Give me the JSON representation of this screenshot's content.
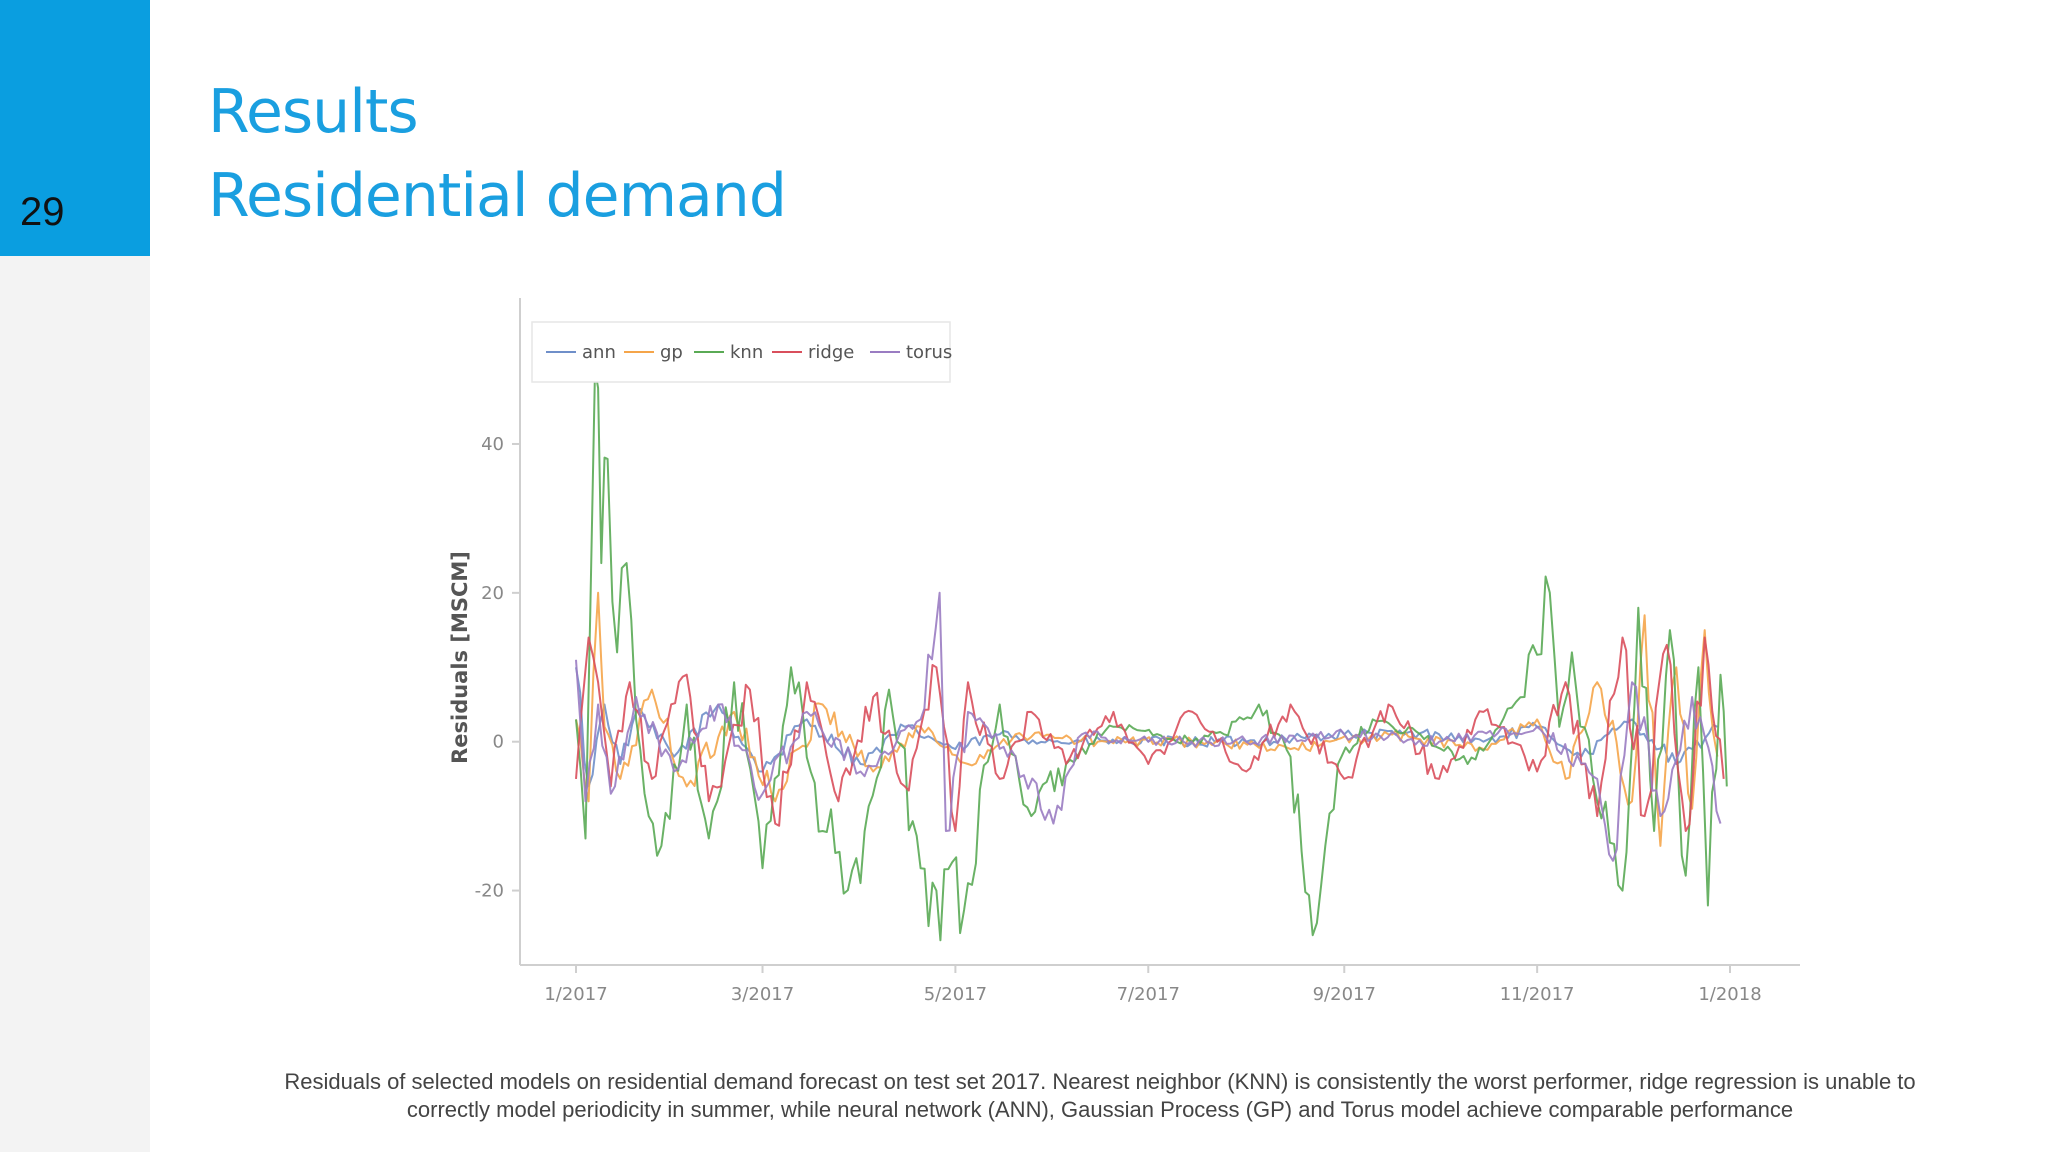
{
  "slide": {
    "number": "29",
    "title_line1": "Results",
    "title_line2": "Residential demand",
    "caption": "Residuals of selected models on residential demand forecast on test set 2017. Nearest neighbor (KNN) is consistently the worst performer, ridge regression is unable to correctly model periodicity in summer, while neural network (ANN), Gaussian Process (GP) and Torus model achieve comparable performance"
  },
  "chart_data": {
    "type": "line",
    "title": "",
    "xlabel": "",
    "ylabel": "Residuals [MSCM]",
    "ylim": [
      -30,
      58
    ],
    "yticks": [
      40,
      20,
      0,
      -20
    ],
    "ytick_labels": [
      "40",
      "20",
      "0",
      "-20"
    ],
    "x_range": [
      "2017-01-01",
      "2018-01-01"
    ],
    "xticks": [
      "2017-01-01",
      "2017-03-01",
      "2017-05-01",
      "2017-07-01",
      "2017-09-01",
      "2017-11-01",
      "2018-01-01"
    ],
    "xtick_labels": [
      "1/2017",
      "3/2017",
      "5/2017",
      "7/2017",
      "9/2017",
      "11/2017",
      "1/2018"
    ],
    "grid": false,
    "legend": "top-left",
    "legend_layout": "horizontal",
    "series": [
      {
        "name": "ann",
        "color": "#6f8fc9",
        "points": [
          [
            "2017-01-01",
            10
          ],
          [
            "2017-01-05",
            -6
          ],
          [
            "2017-01-10",
            5
          ],
          [
            "2017-01-15",
            -3
          ],
          [
            "2017-01-20",
            4
          ],
          [
            "2017-02-01",
            -2
          ],
          [
            "2017-02-15",
            5
          ],
          [
            "2017-03-01",
            -4
          ],
          [
            "2017-03-15",
            3
          ],
          [
            "2017-04-01",
            -3
          ],
          [
            "2017-04-15",
            2
          ],
          [
            "2017-05-01",
            -1
          ],
          [
            "2017-05-15",
            1
          ],
          [
            "2017-06-01",
            0
          ],
          [
            "2017-07-01",
            0
          ],
          [
            "2017-08-01",
            0
          ],
          [
            "2017-09-01",
            1
          ],
          [
            "2017-10-01",
            1
          ],
          [
            "2017-10-15",
            0
          ],
          [
            "2017-11-01",
            2
          ],
          [
            "2017-11-15",
            -2
          ],
          [
            "2017-12-01",
            3
          ],
          [
            "2017-12-15",
            -3
          ],
          [
            "2017-12-28",
            2
          ]
        ]
      },
      {
        "name": "gp",
        "color": "#f5a54a",
        "points": [
          [
            "2017-01-01",
            3
          ],
          [
            "2017-01-05",
            -8
          ],
          [
            "2017-01-08",
            20
          ],
          [
            "2017-01-10",
            2
          ],
          [
            "2017-01-15",
            -5
          ],
          [
            "2017-01-25",
            7
          ],
          [
            "2017-02-05",
            -6
          ],
          [
            "2017-02-20",
            4
          ],
          [
            "2017-03-05",
            -8
          ],
          [
            "2017-03-20",
            5
          ],
          [
            "2017-04-05",
            -4
          ],
          [
            "2017-04-20",
            2
          ],
          [
            "2017-05-05",
            -3
          ],
          [
            "2017-05-20",
            1
          ],
          [
            "2017-06-15",
            0
          ],
          [
            "2017-07-15",
            0
          ],
          [
            "2017-08-15",
            -1
          ],
          [
            "2017-09-15",
            1
          ],
          [
            "2017-10-15",
            -1
          ],
          [
            "2017-11-01",
            3
          ],
          [
            "2017-11-10",
            -5
          ],
          [
            "2017-11-20",
            8
          ],
          [
            "2017-12-01",
            -8
          ],
          [
            "2017-12-05",
            17
          ],
          [
            "2017-12-10",
            -14
          ],
          [
            "2017-12-15",
            10
          ],
          [
            "2017-12-20",
            -9
          ],
          [
            "2017-12-24",
            15
          ],
          [
            "2017-12-28",
            -2
          ]
        ]
      },
      {
        "name": "knn",
        "color": "#5aaa55",
        "points": [
          [
            "2017-01-01",
            3
          ],
          [
            "2017-01-04",
            -13
          ],
          [
            "2017-01-07",
            50
          ],
          [
            "2017-01-09",
            24
          ],
          [
            "2017-01-11",
            38
          ],
          [
            "2017-01-14",
            12
          ],
          [
            "2017-01-17",
            24
          ],
          [
            "2017-01-20",
            3
          ],
          [
            "2017-01-24",
            -10
          ],
          [
            "2017-01-28",
            -14
          ],
          [
            "2017-02-05",
            5
          ],
          [
            "2017-02-12",
            -13
          ],
          [
            "2017-02-20",
            8
          ],
          [
            "2017-03-01",
            -17
          ],
          [
            "2017-03-10",
            10
          ],
          [
            "2017-03-20",
            -12
          ],
          [
            "2017-04-01",
            -19
          ],
          [
            "2017-04-10",
            7
          ],
          [
            "2017-04-20",
            -17
          ],
          [
            "2017-04-25",
            -20
          ],
          [
            "2017-05-05",
            -19
          ],
          [
            "2017-05-15",
            5
          ],
          [
            "2017-05-25",
            -10
          ],
          [
            "2017-06-05",
            -3
          ],
          [
            "2017-06-20",
            2
          ],
          [
            "2017-07-10",
            0
          ],
          [
            "2017-07-25",
            1
          ],
          [
            "2017-08-05",
            5
          ],
          [
            "2017-08-15",
            -2
          ],
          [
            "2017-08-22",
            -26
          ],
          [
            "2017-08-26",
            -14
          ],
          [
            "2017-08-30",
            -3
          ],
          [
            "2017-09-10",
            3
          ],
          [
            "2017-09-25",
            1
          ],
          [
            "2017-10-10",
            -3
          ],
          [
            "2017-10-20",
            2
          ],
          [
            "2017-10-28",
            6
          ],
          [
            "2017-11-05",
            20
          ],
          [
            "2017-11-08",
            2
          ],
          [
            "2017-11-12",
            12
          ],
          [
            "2017-11-20",
            -8
          ],
          [
            "2017-11-28",
            -20
          ],
          [
            "2017-12-03",
            18
          ],
          [
            "2017-12-08",
            -12
          ],
          [
            "2017-12-13",
            15
          ],
          [
            "2017-12-18",
            -18
          ],
          [
            "2017-12-22",
            10
          ],
          [
            "2017-12-25",
            -22
          ],
          [
            "2017-12-29",
            9
          ],
          [
            "2017-12-31",
            -6
          ]
        ]
      },
      {
        "name": "ridge",
        "color": "#d94f5c",
        "points": [
          [
            "2017-01-01",
            -5
          ],
          [
            "2017-01-05",
            14
          ],
          [
            "2017-01-08",
            8
          ],
          [
            "2017-01-12",
            -6
          ],
          [
            "2017-01-18",
            8
          ],
          [
            "2017-01-25",
            -5
          ],
          [
            "2017-02-05",
            9
          ],
          [
            "2017-02-12",
            -8
          ],
          [
            "2017-02-25",
            7
          ],
          [
            "2017-03-05",
            -11
          ],
          [
            "2017-03-15",
            8
          ],
          [
            "2017-03-25",
            -8
          ],
          [
            "2017-04-05",
            6
          ],
          [
            "2017-04-15",
            -6
          ],
          [
            "2017-04-25",
            10
          ],
          [
            "2017-05-01",
            -12
          ],
          [
            "2017-05-05",
            8
          ],
          [
            "2017-05-15",
            -5
          ],
          [
            "2017-05-25",
            4
          ],
          [
            "2017-06-05",
            -3
          ],
          [
            "2017-06-20",
            4
          ],
          [
            "2017-07-01",
            -3
          ],
          [
            "2017-07-15",
            4
          ],
          [
            "2017-08-01",
            -4
          ],
          [
            "2017-08-15",
            5
          ],
          [
            "2017-09-01",
            -5
          ],
          [
            "2017-09-15",
            5
          ],
          [
            "2017-10-01",
            -5
          ],
          [
            "2017-10-15",
            4
          ],
          [
            "2017-11-01",
            -4
          ],
          [
            "2017-11-10",
            8
          ],
          [
            "2017-11-20",
            -10
          ],
          [
            "2017-11-28",
            14
          ],
          [
            "2017-12-05",
            -10
          ],
          [
            "2017-12-12",
            13
          ],
          [
            "2017-12-18",
            -12
          ],
          [
            "2017-12-24",
            14
          ],
          [
            "2017-12-30",
            -5
          ]
        ]
      },
      {
        "name": "torus",
        "color": "#9a7cc2",
        "points": [
          [
            "2017-01-01",
            11
          ],
          [
            "2017-01-04",
            -8
          ],
          [
            "2017-01-08",
            5
          ],
          [
            "2017-01-12",
            -7
          ],
          [
            "2017-01-20",
            6
          ],
          [
            "2017-02-01",
            -4
          ],
          [
            "2017-02-15",
            5
          ],
          [
            "2017-03-01",
            -7
          ],
          [
            "2017-03-15",
            4
          ],
          [
            "2017-04-01",
            -4
          ],
          [
            "2017-04-20",
            3
          ],
          [
            "2017-04-26",
            20
          ],
          [
            "2017-04-28",
            -12
          ],
          [
            "2017-05-05",
            4
          ],
          [
            "2017-05-20",
            -2
          ],
          [
            "2017-06-01",
            -11
          ],
          [
            "2017-06-10",
            1
          ],
          [
            "2017-07-01",
            0
          ],
          [
            "2017-08-01",
            0
          ],
          [
            "2017-09-01",
            1
          ],
          [
            "2017-10-01",
            0
          ],
          [
            "2017-11-01",
            2
          ],
          [
            "2017-11-20",
            -5
          ],
          [
            "2017-11-25",
            -16
          ],
          [
            "2017-12-01",
            8
          ],
          [
            "2017-12-10",
            -10
          ],
          [
            "2017-12-20",
            6
          ],
          [
            "2017-12-29",
            -11
          ]
        ]
      }
    ]
  }
}
